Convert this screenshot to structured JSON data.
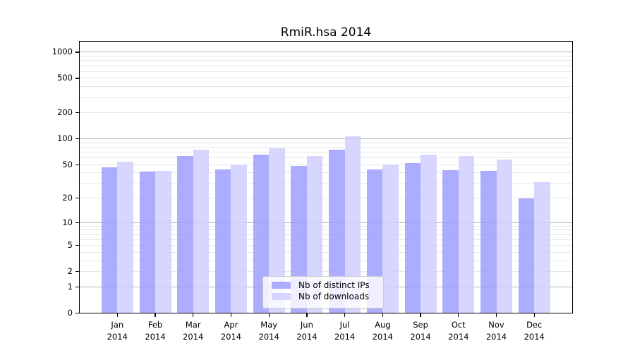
{
  "chart_data": {
    "type": "bar",
    "title": "RmiR.hsa 2014",
    "categories": [
      "Jan",
      "Feb",
      "Mar",
      "Apr",
      "May",
      "Jun",
      "Jul",
      "Aug",
      "Sep",
      "Oct",
      "Nov",
      "Dec"
    ],
    "category_year": "2014",
    "series": [
      {
        "name": "Nb of distinct IPs",
        "color": "rgba(153,153,255,0.8)",
        "values": [
          46,
          41,
          63,
          44,
          66,
          48,
          75,
          44,
          52,
          43,
          42,
          20
        ]
      },
      {
        "name": "Nb of downloads",
        "color": "rgba(204,204,255,0.8)",
        "values": [
          54,
          42,
          75,
          49,
          77,
          63,
          108,
          50,
          65,
          63,
          57,
          31
        ]
      }
    ],
    "xlabel": "",
    "ylabel": "",
    "yscale": "log1p",
    "ylim": [
      0,
      1336
    ],
    "yticks": [
      0,
      1,
      2,
      5,
      10,
      20,
      50,
      100,
      200,
      500,
      1000
    ],
    "major_gridlines": [
      1,
      10,
      100,
      1000
    ],
    "grid": true,
    "colors": {
      "major_gridline": "#b8b8b8",
      "minor_gridline": "#e8e8e8",
      "axis": "#000000",
      "bar_dark": "#a7a7f5",
      "bar_light": "#d8d8fa"
    },
    "legend_position": "lower center"
  }
}
